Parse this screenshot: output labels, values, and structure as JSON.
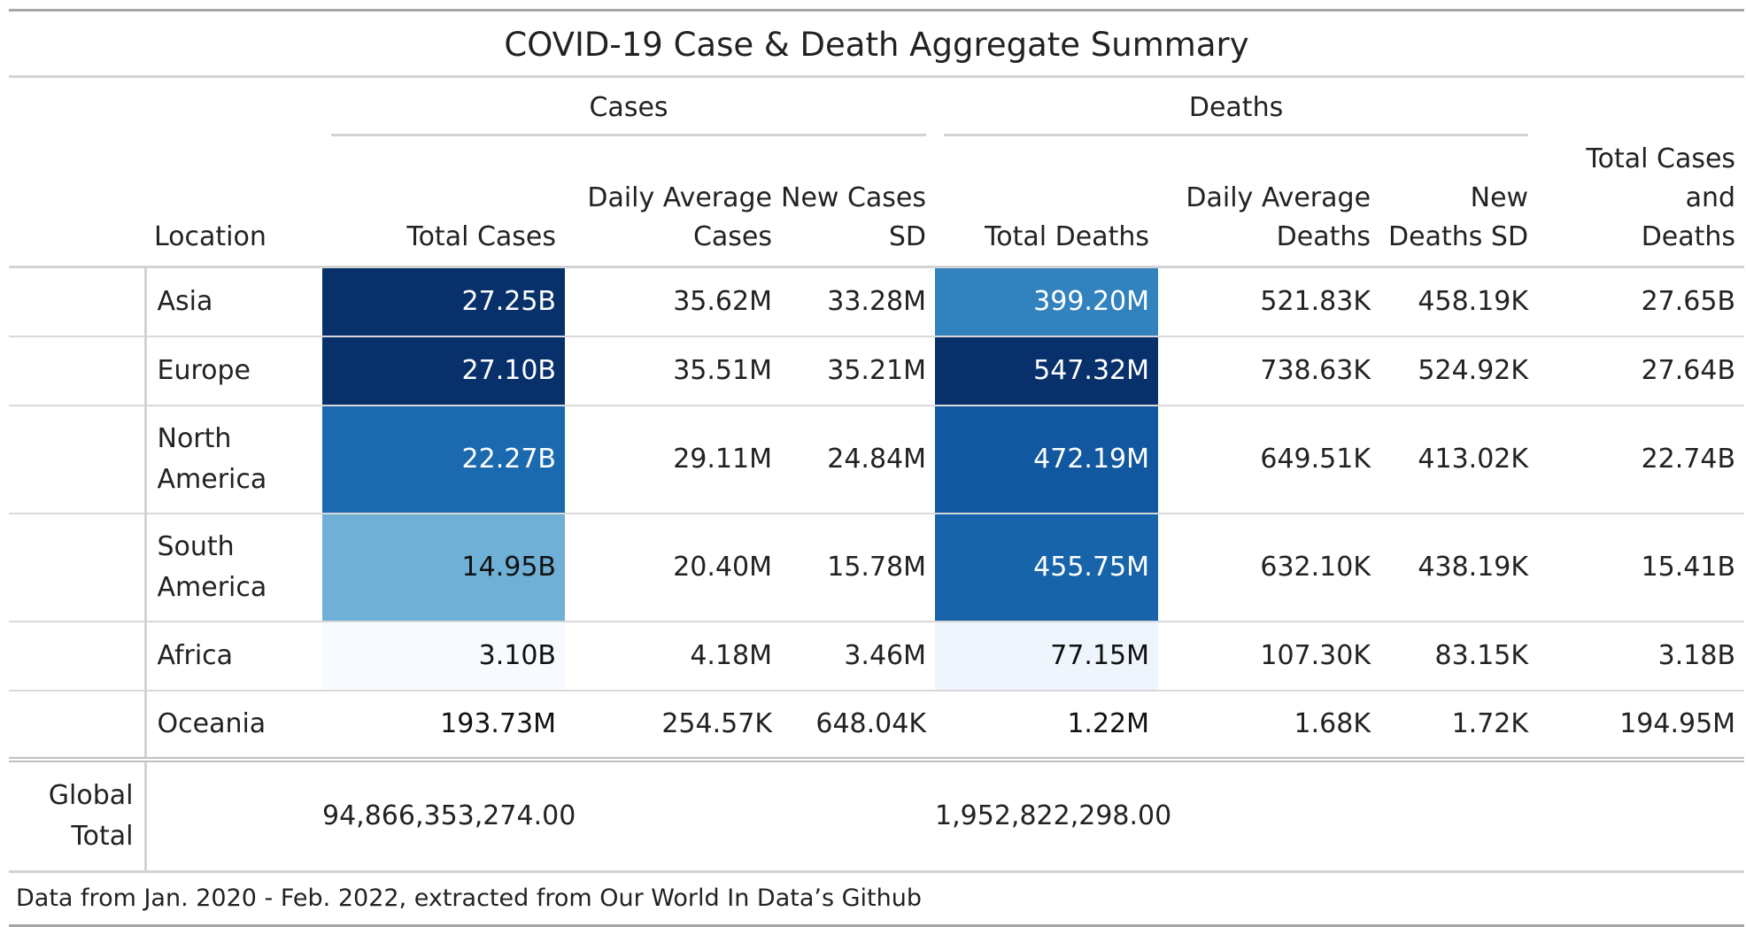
{
  "title": "COVID-19 Case & Death Aggregate Summary",
  "spanners": {
    "cases": "Cases",
    "deaths": "Deaths"
  },
  "columns": {
    "location": "Location",
    "total_cases": "Total Cases",
    "daily_avg_cases_1": "Daily Average",
    "daily_avg_cases_2": "Cases",
    "new_cases_sd_1": "New Cases",
    "new_cases_sd_2": "SD",
    "total_deaths": "Total Deaths",
    "daily_avg_deaths_1": "Daily Average",
    "daily_avg_deaths_2": "Deaths",
    "new_deaths_sd_1": "New",
    "new_deaths_sd_2": "Deaths SD",
    "total_cd_1": "Total Cases and",
    "total_cd_2": "Deaths"
  },
  "rows": [
    {
      "loc1": "Asia",
      "loc2": "",
      "total_cases": "27.25B",
      "daily_avg_cases": "35.62M",
      "new_cases_sd": "33.28M",
      "total_deaths": "399.20M",
      "daily_avg_deaths": "521.83K",
      "new_deaths_sd": "458.19K",
      "total_cd": "27.65B"
    },
    {
      "loc1": "Europe",
      "loc2": "",
      "total_cases": "27.10B",
      "daily_avg_cases": "35.51M",
      "new_cases_sd": "35.21M",
      "total_deaths": "547.32M",
      "daily_avg_deaths": "738.63K",
      "new_deaths_sd": "524.92K",
      "total_cd": "27.64B"
    },
    {
      "loc1": "North",
      "loc2": "America",
      "total_cases": "22.27B",
      "daily_avg_cases": "29.11M",
      "new_cases_sd": "24.84M",
      "total_deaths": "472.19M",
      "daily_avg_deaths": "649.51K",
      "new_deaths_sd": "413.02K",
      "total_cd": "22.74B"
    },
    {
      "loc1": "South",
      "loc2": "America",
      "total_cases": "14.95B",
      "daily_avg_cases": "20.40M",
      "new_cases_sd": "15.78M",
      "total_deaths": "455.75M",
      "daily_avg_deaths": "632.10K",
      "new_deaths_sd": "438.19K",
      "total_cd": "15.41B"
    },
    {
      "loc1": "Africa",
      "loc2": "",
      "total_cases": "3.10B",
      "daily_avg_cases": "4.18M",
      "new_cases_sd": "3.46M",
      "total_deaths": "77.15M",
      "daily_avg_deaths": "107.30K",
      "new_deaths_sd": "83.15K",
      "total_cd": "3.18B"
    },
    {
      "loc1": "Oceania",
      "loc2": "",
      "total_cases": "193.73M",
      "daily_avg_cases": "254.57K",
      "new_cases_sd": "648.04K",
      "total_deaths": "1.22M",
      "daily_avg_deaths": "1.68K",
      "new_deaths_sd": "1.72K",
      "total_cd": "194.95M"
    }
  ],
  "cell_colors": {
    "total_cases": [
      "#08306b",
      "#08306b",
      "#1b69af",
      "#6fb0d7",
      "#f7fbff",
      "#ffffff"
    ],
    "total_cases_text": [
      "#ffffff",
      "#ffffff",
      "#ffffff",
      "#111111",
      "#111111",
      "#111111"
    ],
    "total_deaths": [
      "#3282be",
      "#08306b",
      "#1158a0",
      "#1764ab",
      "#eef5fc",
      "#ffffff"
    ],
    "total_deaths_text": [
      "#ffffff",
      "#ffffff",
      "#ffffff",
      "#ffffff",
      "#111111",
      "#111111"
    ]
  },
  "grand_total": {
    "label1": "Global",
    "label2": "Total",
    "total_cases": "94,866,353,274.00",
    "total_deaths": "1,952,822,298.00"
  },
  "source_note": "Data from Jan. 2020 - Feb. 2022, extracted from Our World In Data’s Github"
}
